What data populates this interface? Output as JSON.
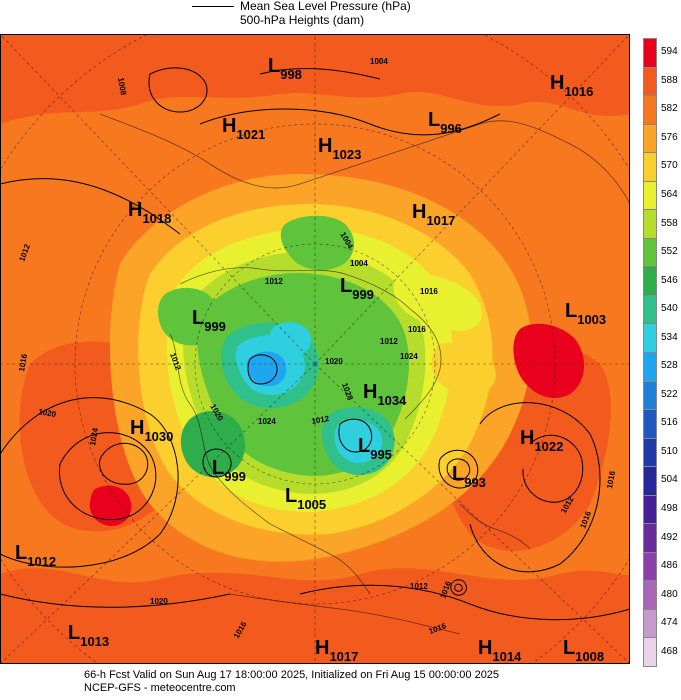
{
  "legend": {
    "mslp_label": "Mean Sea Level Pressure (hPa)",
    "heights_label": "500-hPa Heights (dam)"
  },
  "footer": {
    "line1": "66-h Fcst Valid on Sun Aug 17 18:00:00 2025, Initialized on Fri Aug 15 00:00:00 2025",
    "line2": "NCEP-GFS - meteocentre.com"
  },
  "colorbar": {
    "ticks": [
      "594",
      "588",
      "582",
      "576",
      "570",
      "564",
      "558",
      "552",
      "546",
      "540",
      "534",
      "528",
      "522",
      "516",
      "510",
      "504",
      "498",
      "492",
      "486",
      "480",
      "474",
      "468"
    ],
    "colors": [
      "#e8001c",
      "#f35a1e",
      "#f7781f",
      "#fba427",
      "#fbd02e",
      "#e8f02f",
      "#b6dd2c",
      "#5fc33c",
      "#2fad4a",
      "#2fc08c",
      "#2fcfe0",
      "#1fa6f0",
      "#1f7ed8",
      "#1f58c0",
      "#1f3aa8",
      "#27269a",
      "#46209a",
      "#6a2a9c",
      "#8c3fa8",
      "#a866b6",
      "#c79acb",
      "#e8d3ea"
    ]
  },
  "centers": [
    {
      "type": "L",
      "value": "998"
    },
    {
      "type": "H",
      "value": "1016"
    },
    {
      "type": "H",
      "value": "1021"
    },
    {
      "type": "H",
      "value": "1023"
    },
    {
      "type": "L",
      "value": "996"
    },
    {
      "type": "H",
      "value": "1018"
    },
    {
      "type": "H",
      "value": "1017"
    },
    {
      "type": "L",
      "value": "999"
    },
    {
      "type": "L",
      "value": "999"
    },
    {
      "type": "L",
      "value": "1003"
    },
    {
      "type": "H",
      "value": "1034"
    },
    {
      "type": "H",
      "value": "1030"
    },
    {
      "type": "L",
      "value": "999"
    },
    {
      "type": "L",
      "value": "995"
    },
    {
      "type": "H",
      "value": "1022"
    },
    {
      "type": "L",
      "value": "993"
    },
    {
      "type": "L",
      "value": "1005"
    },
    {
      "type": "L",
      "value": "1012"
    },
    {
      "type": "L",
      "value": "1013"
    },
    {
      "type": "H",
      "value": "1017"
    },
    {
      "type": "H",
      "value": "1014"
    },
    {
      "type": "L",
      "value": "1008"
    }
  ],
  "contour_labels": [
    "1008",
    "1004",
    "1004",
    "1012",
    "1016",
    "1020",
    "1024",
    "1024",
    "1020",
    "1016",
    "1012",
    "1012",
    "1016",
    "1020",
    "1016",
    "1016",
    "1012",
    "1012",
    "1024",
    "1028",
    "1012",
    "1016",
    "1016",
    "1004",
    "1016",
    "1012",
    "1020"
  ]
}
